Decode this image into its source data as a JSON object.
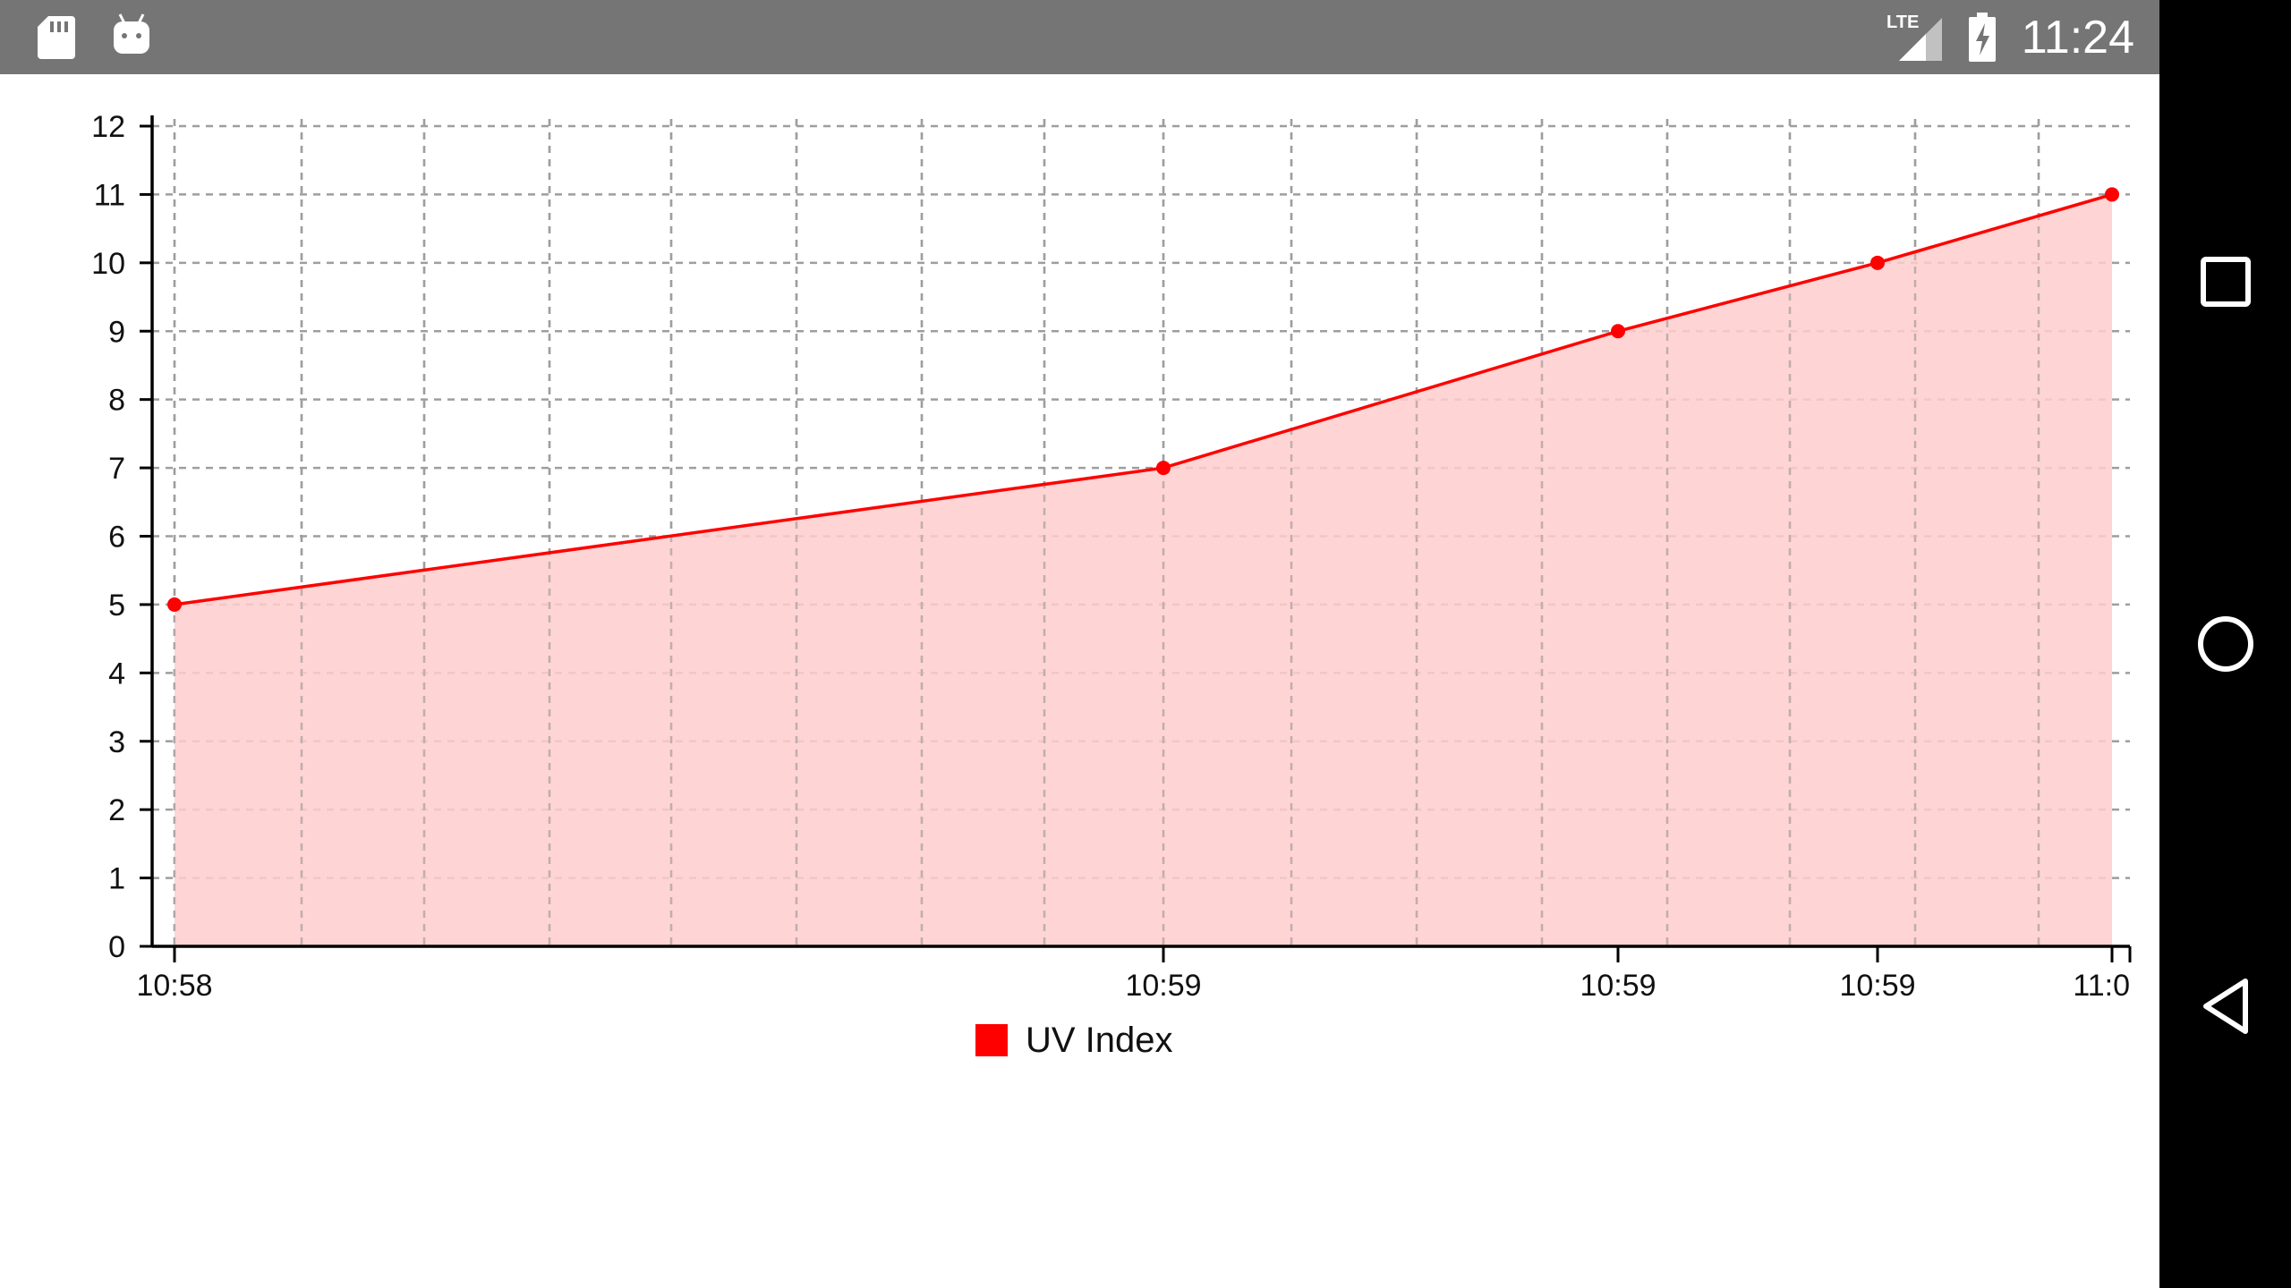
{
  "status_bar": {
    "time": "11:24",
    "network_label": "LTE",
    "icons": [
      "sd-card-icon",
      "android-debug-icon",
      "lte-signal-icon",
      "battery-charging-icon"
    ]
  },
  "nav_bar": {
    "icons": [
      "recents-square-icon",
      "home-circle-icon",
      "back-triangle-icon"
    ]
  },
  "colors": {
    "series": "#ff0000",
    "fill": "#ffcccc",
    "grid": "#9e9e9e",
    "status_bar": "#757575",
    "nav_bar": "#000000"
  },
  "chart_data": {
    "type": "area",
    "title": "",
    "xlabel": "",
    "ylabel": "",
    "ylim": [
      0,
      12
    ],
    "y_ticks": [
      "0",
      "1",
      "2",
      "3",
      "4",
      "5",
      "6",
      "7",
      "8",
      "9",
      "10",
      "11",
      "12"
    ],
    "x_tick_labels": [
      "10:58",
      "10:59",
      "10:59",
      "10:59",
      "11:0"
    ],
    "grid": true,
    "legend_position": "bottom-center",
    "series": [
      {
        "name": "UV Index",
        "points": [
          {
            "x_label": "10:58",
            "y": 5
          },
          {
            "x_label": "10:59",
            "y": 7
          },
          {
            "x_label": "10:59",
            "y": 9
          },
          {
            "x_label": "10:59",
            "y": 10
          },
          {
            "x_label": "11:0",
            "y": 11
          }
        ]
      }
    ]
  }
}
